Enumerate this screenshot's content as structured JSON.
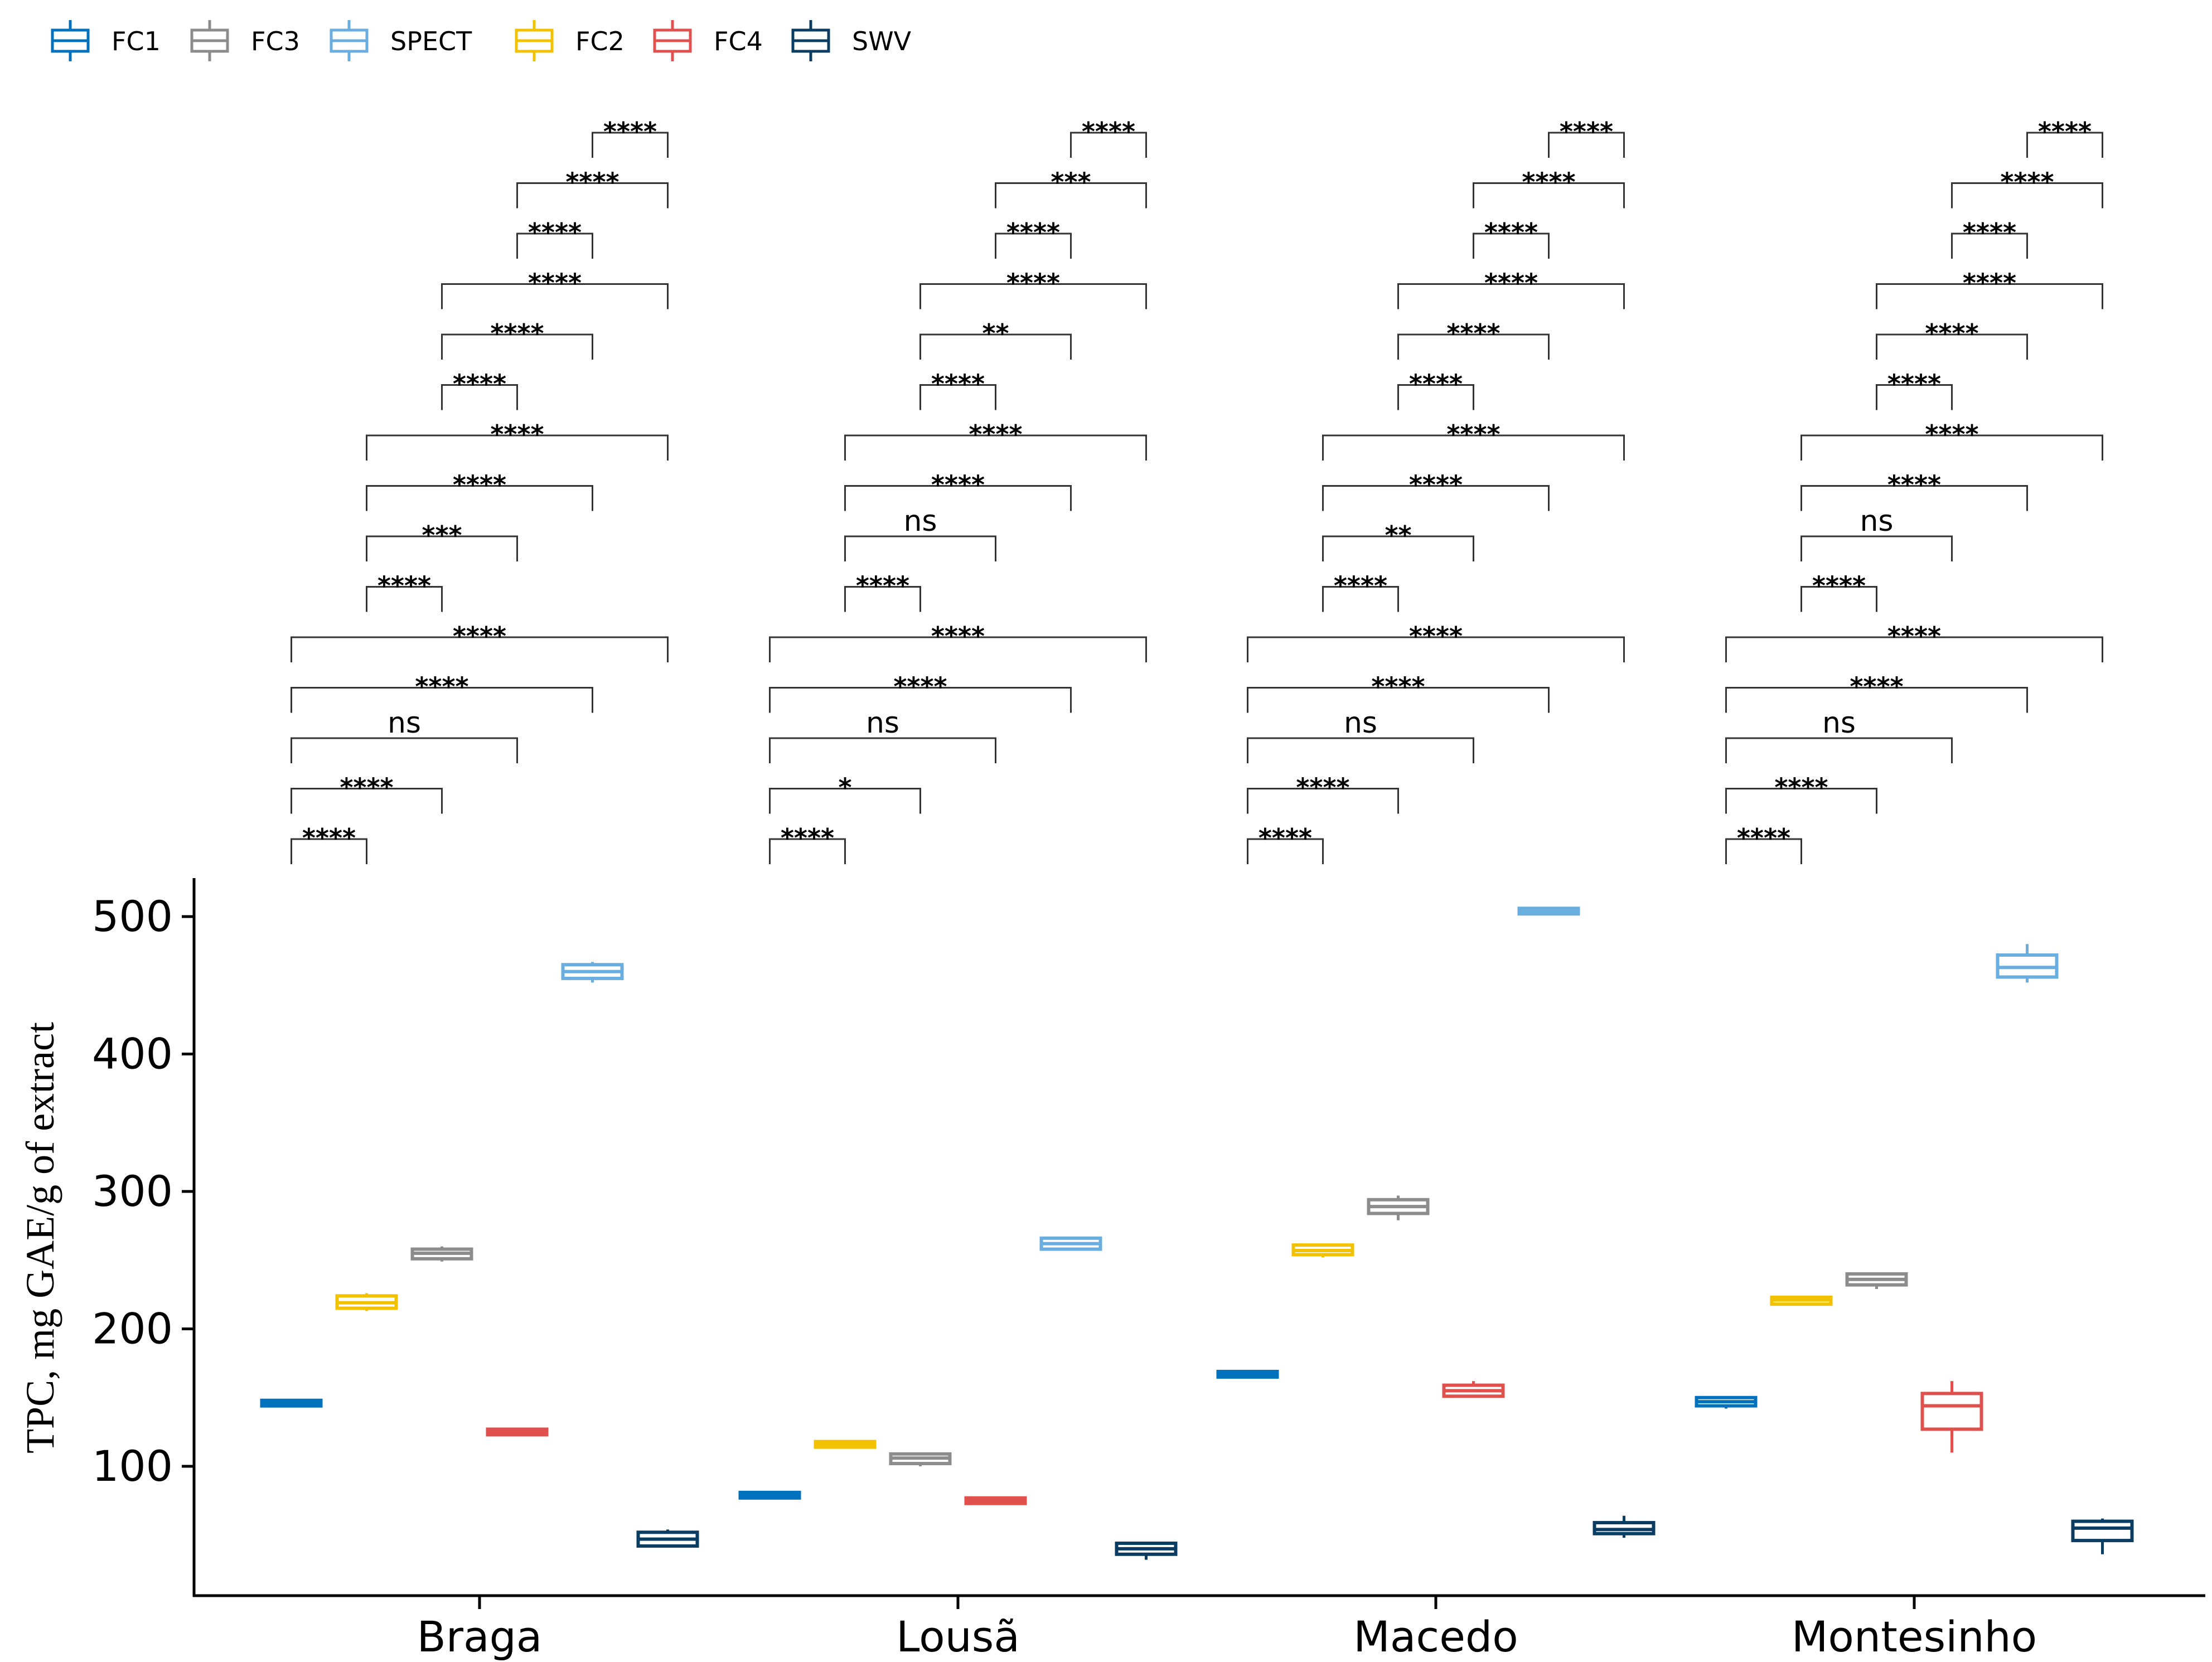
{
  "chart_data": {
    "type": "boxplot",
    "title": "",
    "xlabel": "",
    "ylabel": "TPC, mg GAE/g of extract",
    "ylim": [
      20,
      530
    ],
    "yticks": [
      100,
      200,
      300,
      400,
      500
    ],
    "ytick_labels": [
      "100",
      "200",
      "300",
      "400",
      "500"
    ],
    "grid": false,
    "legend_position": "top-left",
    "categories": [
      "Braga",
      "Lousã",
      "Macedo",
      "Montesinho"
    ],
    "series_order": [
      "FC1",
      "FC2",
      "FC3",
      "FC4",
      "SPECT",
      "SWV"
    ],
    "series": [
      {
        "name": "FC1",
        "color": "#0072BD",
        "values": [
          {
            "min": 144,
            "q1": 144,
            "median": 146,
            "q3": 148,
            "max": 148
          },
          {
            "min": 78,
            "q1": 78,
            "median": 79,
            "q3": 81,
            "max": 81
          },
          {
            "min": 165,
            "q1": 165,
            "median": 167,
            "q3": 169,
            "max": 169
          },
          {
            "min": 142,
            "q1": 144,
            "median": 147,
            "q3": 150,
            "max": 151
          }
        ]
      },
      {
        "name": "FC2",
        "color": "#F2C200",
        "values": [
          {
            "min": 213,
            "q1": 215,
            "median": 219,
            "q3": 224,
            "max": 226
          },
          {
            "min": 114,
            "q1": 114,
            "median": 116,
            "q3": 118,
            "max": 118
          },
          {
            "min": 252,
            "q1": 254,
            "median": 257,
            "q3": 261,
            "max": 262
          },
          {
            "min": 218,
            "q1": 218,
            "median": 221,
            "q3": 223,
            "max": 224
          }
        ]
      },
      {
        "name": "FC3",
        "color": "#8C8C8C",
        "values": [
          {
            "min": 249,
            "q1": 251,
            "median": 255,
            "q3": 258,
            "max": 260
          },
          {
            "min": 100,
            "q1": 102,
            "median": 106,
            "q3": 109,
            "max": 110
          },
          {
            "min": 279,
            "q1": 284,
            "median": 289,
            "q3": 294,
            "max": 297
          },
          {
            "min": 229,
            "q1": 232,
            "median": 236,
            "q3": 240,
            "max": 241
          }
        ]
      },
      {
        "name": "FC4",
        "color": "#E0504D",
        "values": [
          {
            "min": 123,
            "q1": 123,
            "median": 125,
            "q3": 127,
            "max": 127
          },
          {
            "min": 74,
            "q1": 74,
            "median": 75,
            "q3": 77,
            "max": 77
          },
          {
            "min": 150,
            "q1": 151,
            "median": 155,
            "q3": 159,
            "max": 162
          },
          {
            "min": 110,
            "q1": 127,
            "median": 144,
            "q3": 153,
            "max": 162
          }
        ]
      },
      {
        "name": "SPECT",
        "color": "#6AAEE0",
        "values": [
          {
            "min": 452,
            "q1": 455,
            "median": 460,
            "q3": 465,
            "max": 467
          },
          {
            "min": 257,
            "q1": 258,
            "median": 262,
            "q3": 266,
            "max": 267
          },
          {
            "min": 502,
            "q1": 502,
            "median": 504,
            "q3": 506,
            "max": 506
          },
          {
            "min": 452,
            "q1": 456,
            "median": 463,
            "q3": 472,
            "max": 480
          }
        ]
      },
      {
        "name": "SWV",
        "color": "#0B3D63",
        "values": [
          {
            "min": 41,
            "q1": 42,
            "median": 47,
            "q3": 52,
            "max": 54
          },
          {
            "min": 32,
            "q1": 36,
            "median": 40,
            "q3": 44,
            "max": 45
          },
          {
            "min": 48,
            "q1": 51,
            "median": 54,
            "q3": 59,
            "max": 64
          },
          {
            "min": 36,
            "q1": 46,
            "median": 55,
            "q3": 60,
            "max": 62
          }
        ]
      }
    ],
    "legend": [
      "FC1",
      "FC3",
      "SPECT",
      "FC2",
      "FC4",
      "SWV"
    ],
    "comparisons": {
      "pairs": [
        [
          "FC1",
          "FC2"
        ],
        [
          "FC1",
          "FC3"
        ],
        [
          "FC1",
          "FC4"
        ],
        [
          "FC1",
          "SPECT"
        ],
        [
          "FC1",
          "SWV"
        ],
        [
          "FC2",
          "FC3"
        ],
        [
          "FC2",
          "FC4"
        ],
        [
          "FC2",
          "SPECT"
        ],
        [
          "FC2",
          "SWV"
        ],
        [
          "FC3",
          "FC4"
        ],
        [
          "FC3",
          "SPECT"
        ],
        [
          "FC3",
          "SWV"
        ],
        [
          "FC4",
          "SPECT"
        ],
        [
          "FC4",
          "SWV"
        ],
        [
          "SPECT",
          "SWV"
        ]
      ],
      "labels": [
        [
          "****",
          "****",
          "ns",
          "****",
          "****",
          "****",
          "***",
          "****",
          "****",
          "****",
          "****",
          "****",
          "****",
          "****",
          "****"
        ],
        [
          "****",
          "*",
          "ns",
          "****",
          "****",
          "****",
          "ns",
          "****",
          "****",
          "****",
          "**",
          "****",
          "****",
          "***",
          "****"
        ],
        [
          "****",
          "****",
          "ns",
          "****",
          "****",
          "****",
          "**",
          "****",
          "****",
          "****",
          "****",
          "****",
          "****",
          "****",
          "****"
        ],
        [
          "****",
          "****",
          "ns",
          "****",
          "****",
          "****",
          "ns",
          "****",
          "****",
          "****",
          "****",
          "****",
          "****",
          "****",
          "****"
        ]
      ]
    }
  }
}
